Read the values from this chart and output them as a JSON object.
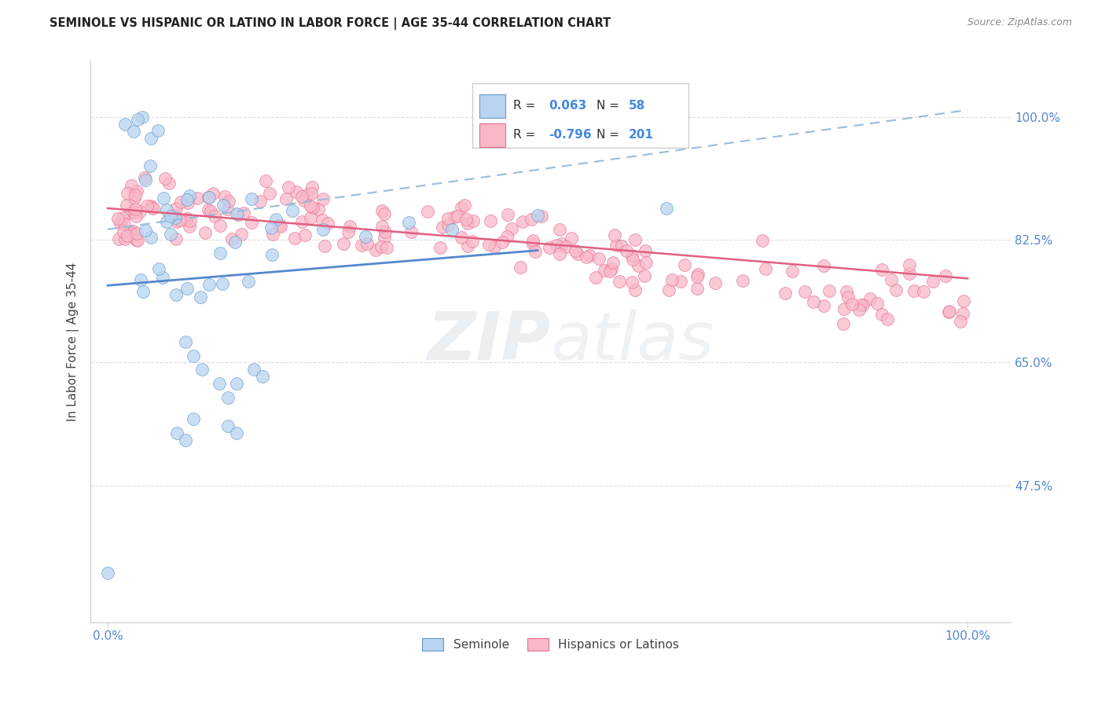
{
  "title": "SEMINOLE VS HISPANIC OR LATINO IN LABOR FORCE | AGE 35-44 CORRELATION CHART",
  "source": "Source: ZipAtlas.com",
  "ylabel": "In Labor Force | Age 35-44",
  "xlim": [
    -0.02,
    1.05
  ],
  "ylim": [
    0.28,
    1.08
  ],
  "ytick_positions": [
    0.475,
    0.65,
    0.825,
    1.0
  ],
  "ytick_labels": [
    "47.5%",
    "65.0%",
    "82.5%",
    "100.0%"
  ],
  "xtick_positions": [
    0.0,
    1.0
  ],
  "xtick_labels": [
    "0.0%",
    "100.0%"
  ],
  "legend_blue_r": "0.063",
  "legend_blue_n": "58",
  "legend_pink_r": "-0.796",
  "legend_pink_n": "201",
  "blue_fill_color": "#b8d4f0",
  "pink_fill_color": "#f8b8c8",
  "blue_edge_color": "#6699cc",
  "pink_edge_color": "#e87090",
  "blue_line_color": "#5588cc",
  "pink_line_color": "#e06080",
  "dash_line_color": "#99bbdd",
  "tick_color": "#5588cc",
  "title_color": "#222222",
  "source_color": "#888888",
  "ylabel_color": "#444444",
  "legend_label_color": "#333333",
  "legend_val_color": "#4488dd",
  "grid_color": "#dddddd",
  "bg_color": "#ffffff",
  "watermark_zip_color": "#99aabb",
  "watermark_atlas_color": "#aabbcc",
  "blue_line_x0": 0.0,
  "blue_line_x1": 0.5,
  "blue_line_y0": 0.76,
  "blue_line_y1": 0.81,
  "pink_line_x0": 0.0,
  "pink_line_x1": 1.0,
  "pink_line_y0": 0.87,
  "pink_line_y1": 0.77,
  "dash_line_x0": 0.0,
  "dash_line_x1": 1.0,
  "dash_line_y0": 0.84,
  "dash_line_y1": 1.01
}
